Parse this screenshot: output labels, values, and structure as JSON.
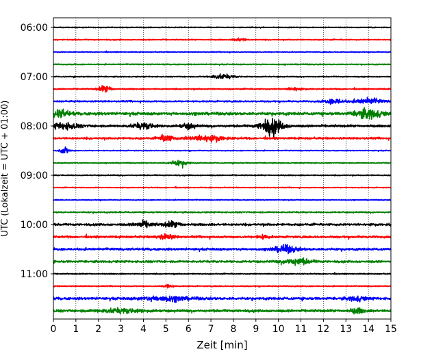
{
  "chart_data": {
    "type": "line",
    "title": "",
    "xlabel": "Zeit  [min]",
    "ylabel": "UTC (Lokalzeit = UTC + 01:00)",
    "xlim": [
      0,
      15
    ],
    "x_ticks": [
      0,
      1,
      2,
      3,
      4,
      5,
      6,
      7,
      8,
      9,
      10,
      11,
      12,
      13,
      14,
      15
    ],
    "x_tick_labels": [
      "0",
      "1",
      "2",
      "3",
      "4",
      "5",
      "6",
      "7",
      "8",
      "9",
      "10",
      "11",
      "12",
      "13",
      "14",
      "15"
    ],
    "y_tick_labels": [
      "06:00",
      "07:00",
      "08:00",
      "09:00",
      "10:00",
      "11:00"
    ],
    "grid": "vertical dotted at each minute",
    "trace_minutes": 15,
    "trace_colors": [
      "#000000",
      "#ff0000",
      "#0000ff",
      "#008000"
    ],
    "traces": [
      {
        "start": "06:00",
        "color": "#000000",
        "noise": 0.5,
        "events": []
      },
      {
        "start": "06:15",
        "color": "#ff0000",
        "noise": 0.6,
        "events": [
          [
            8.3,
            2.0,
            0.25
          ]
        ]
      },
      {
        "start": "06:30",
        "color": "#0000ff",
        "noise": 0.5,
        "events": []
      },
      {
        "start": "06:45",
        "color": "#008000",
        "noise": 0.6,
        "events": []
      },
      {
        "start": "07:00",
        "color": "#000000",
        "noise": 0.6,
        "events": [
          [
            7.5,
            2.5,
            0.5
          ]
        ]
      },
      {
        "start": "07:15",
        "color": "#ff0000",
        "noise": 0.7,
        "events": [
          [
            2.3,
            3.5,
            0.3
          ],
          [
            10.7,
            1.8,
            0.3
          ]
        ]
      },
      {
        "start": "07:30",
        "color": "#0000ff",
        "noise": 0.9,
        "events": [
          [
            12.5,
            3.0,
            0.4
          ],
          [
            14.0,
            3.0,
            0.6
          ]
        ]
      },
      {
        "start": "07:45",
        "color": "#008000",
        "noise": 1.6,
        "events": [
          [
            0.3,
            4.0,
            0.4
          ],
          [
            14.0,
            5.0,
            0.6
          ]
        ]
      },
      {
        "start": "08:00",
        "color": "#000000",
        "noise": 1.3,
        "events": [
          [
            0.5,
            3.5,
            0.6
          ],
          [
            4.0,
            3.0,
            0.5
          ],
          [
            6.0,
            3.0,
            0.3
          ],
          [
            9.7,
            9.0,
            0.5
          ]
        ]
      },
      {
        "start": "08:15",
        "color": "#ff0000",
        "noise": 1.1,
        "events": [
          [
            5.0,
            4.0,
            0.3
          ],
          [
            6.8,
            3.0,
            0.8
          ]
        ]
      },
      {
        "start": "08:30",
        "color": "#0000ff",
        "noise": 0.5,
        "events": [
          [
            0.5,
            4.0,
            0.2
          ]
        ]
      },
      {
        "start": "08:45",
        "color": "#008000",
        "noise": 0.6,
        "events": [
          [
            5.6,
            3.0,
            0.4
          ]
        ]
      },
      {
        "start": "09:00",
        "color": "#000000",
        "noise": 0.6,
        "events": []
      },
      {
        "start": "09:15",
        "color": "#ff0000",
        "noise": 0.5,
        "events": []
      },
      {
        "start": "09:30",
        "color": "#0000ff",
        "noise": 0.5,
        "events": []
      },
      {
        "start": "09:45",
        "color": "#008000",
        "noise": 0.8,
        "events": []
      },
      {
        "start": "10:00",
        "color": "#000000",
        "noise": 1.2,
        "events": [
          [
            4.0,
            3.0,
            0.4
          ],
          [
            5.3,
            3.0,
            0.4
          ],
          [
            15.0,
            2.0,
            0.1
          ]
        ]
      },
      {
        "start": "10:15",
        "color": "#ff0000",
        "noise": 1.2,
        "events": [
          [
            5.0,
            2.5,
            0.4
          ],
          [
            9.3,
            2.0,
            0.3
          ]
        ]
      },
      {
        "start": "10:30",
        "color": "#0000ff",
        "noise": 1.3,
        "events": [
          [
            10.3,
            4.0,
            0.5
          ]
        ]
      },
      {
        "start": "10:45",
        "color": "#008000",
        "noise": 1.2,
        "events": [
          [
            10.8,
            3.5,
            0.6
          ]
        ]
      },
      {
        "start": "11:00",
        "color": "#000000",
        "noise": 0.6,
        "events": []
      },
      {
        "start": "11:15",
        "color": "#ff0000",
        "noise": 0.6,
        "events": [
          [
            5.1,
            2.5,
            0.2
          ]
        ]
      },
      {
        "start": "11:30",
        "color": "#0000ff",
        "noise": 1.4,
        "events": [
          [
            5.0,
            2.5,
            1.0
          ],
          [
            13.5,
            2.5,
            0.4
          ]
        ]
      },
      {
        "start": "11:45",
        "color": "#008000",
        "noise": 1.4,
        "events": [
          [
            3.0,
            2.0,
            1.0
          ],
          [
            13.5,
            2.5,
            0.3
          ]
        ]
      }
    ]
  }
}
